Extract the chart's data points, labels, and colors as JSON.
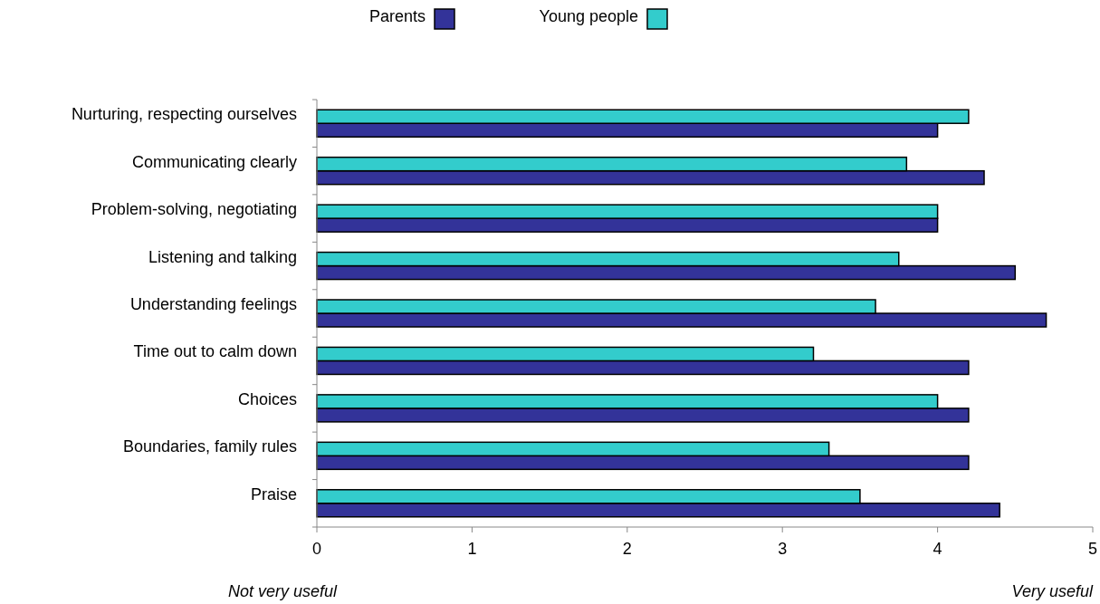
{
  "chart_data": {
    "type": "bar",
    "orientation": "horizontal",
    "categories": [
      "Nurturing, respecting ourselves",
      "Communicating clearly",
      "Problem-solving, negotiating",
      "Listening and talking",
      "Understanding feelings",
      "Time out to calm down",
      "Choices",
      "Boundaries, family rules",
      "Praise"
    ],
    "series": [
      {
        "name": "Parents",
        "color": "#333399",
        "values": [
          4.0,
          4.3,
          4.0,
          4.5,
          4.7,
          4.2,
          4.2,
          4.2,
          4.4
        ]
      },
      {
        "name": "Young people",
        "color": "#33cccc",
        "values": [
          4.2,
          3.8,
          4.0,
          3.75,
          3.6,
          3.2,
          4.0,
          3.3,
          3.5
        ]
      }
    ],
    "xlim": [
      0,
      5
    ],
    "xticks": [
      0,
      1,
      2,
      3,
      4,
      5
    ],
    "grid": false,
    "legend": "top",
    "annotations": [
      "Not very useful",
      "Very useful"
    ]
  }
}
